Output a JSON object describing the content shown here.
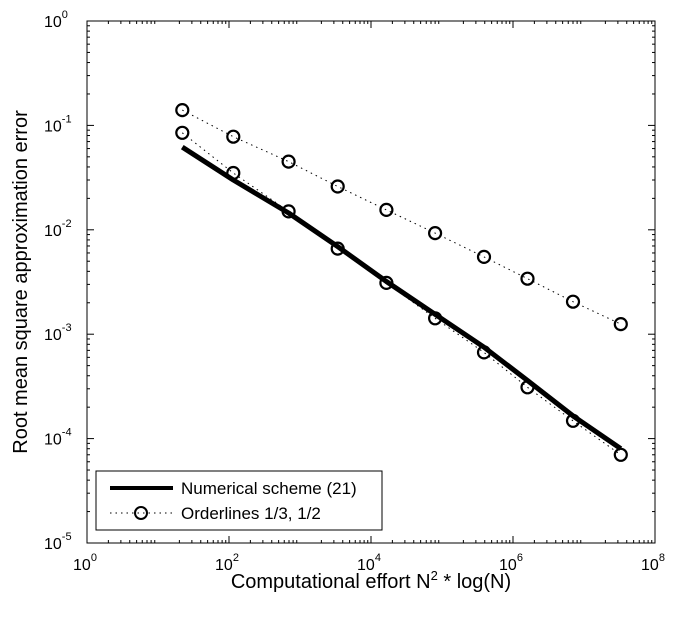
{
  "chart_data": {
    "type": "line",
    "xscale": "log",
    "yscale": "log",
    "xlim": [
      1,
      100000000
    ],
    "ylim": [
      1e-05,
      1
    ],
    "xlabel": {
      "text": "Computational effort N",
      "sup": "2",
      "suffix": " * log(N)"
    },
    "ylabel": "Root mean square approximation error",
    "x_ticks": [
      {
        "base": "10",
        "exp": "0",
        "value": 1
      },
      {
        "base": "10",
        "exp": "2",
        "value": 100
      },
      {
        "base": "10",
        "exp": "4",
        "value": 10000
      },
      {
        "base": "10",
        "exp": "6",
        "value": 1000000
      },
      {
        "base": "10",
        "exp": "8",
        "value": 100000000
      }
    ],
    "y_ticks": [
      {
        "base": "10",
        "exp": "0",
        "value": 1
      },
      {
        "base": "10",
        "exp": "-1",
        "value": 0.1
      },
      {
        "base": "10",
        "exp": "-2",
        "value": 0.01
      },
      {
        "base": "10",
        "exp": "-3",
        "value": 0.001
      },
      {
        "base": "10",
        "exp": "-4",
        "value": 0.0001
      },
      {
        "base": "10",
        "exp": "-5",
        "value": 1e-05
      }
    ],
    "grid": false,
    "legend_position": "bottom-left",
    "series": [
      {
        "name": "Numerical scheme (21)",
        "style": "solid-thick",
        "color": "#000000",
        "x": [
          22,
          115,
          690,
          3400,
          16500,
          80000,
          390000,
          1600000,
          7000000,
          33000000
        ],
        "y": [
          0.062,
          0.03,
          0.0145,
          0.0069,
          0.0032,
          0.00155,
          0.00075,
          0.00036,
          0.000165,
          8e-05
        ]
      },
      {
        "name": "Orderlines 1/3, 1/2",
        "style": "dotted-circles",
        "color": "#000000",
        "x": [
          22,
          115,
          690,
          3400,
          16500,
          80000,
          390000,
          1600000,
          7000000,
          33000000
        ],
        "y": [
          0.14,
          0.078,
          0.045,
          0.026,
          0.0155,
          0.0093,
          0.0055,
          0.0034,
          0.00205,
          0.00125
        ]
      },
      {
        "name": "",
        "style": "dotted-circles",
        "color": "#000000",
        "x": [
          22,
          115,
          690,
          3400,
          16500,
          80000,
          390000,
          1600000,
          7000000,
          33000000
        ],
        "y": [
          0.085,
          0.035,
          0.015,
          0.0066,
          0.0031,
          0.00142,
          0.00067,
          0.00031,
          0.000148,
          7e-05
        ]
      }
    ]
  }
}
